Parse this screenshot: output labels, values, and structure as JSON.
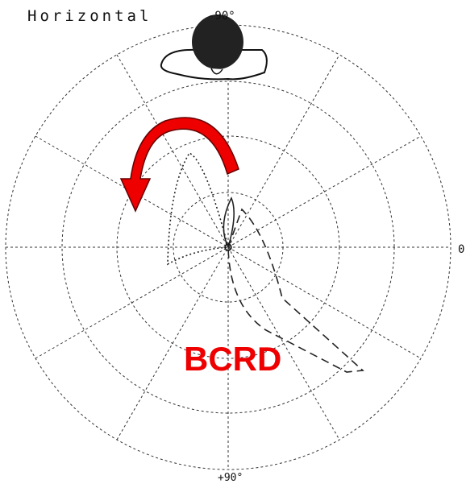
{
  "header": {
    "title": "Horizontal"
  },
  "labels": {
    "top": "-90°",
    "right": "0",
    "bottom": "+90°"
  },
  "annotation": "BCRD"
}
